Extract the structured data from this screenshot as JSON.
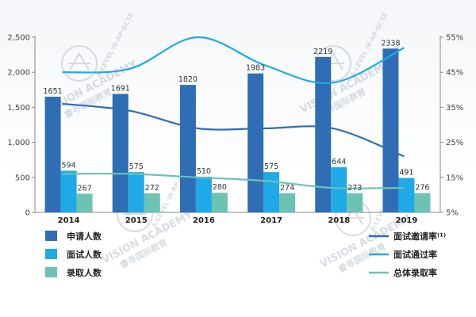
{
  "chart_data": {
    "type": "bar",
    "categories": [
      "2014",
      "2015",
      "2016",
      "2017",
      "2018",
      "2019"
    ],
    "ylim": [
      0,
      2500
    ],
    "yticks": [
      "0",
      "500",
      "1,000",
      "1,500",
      "2,000",
      "2,500"
    ],
    "y2lim": [
      5,
      55
    ],
    "y2ticks": [
      "5%",
      "15%",
      "25%",
      "35%",
      "45%",
      "55%"
    ],
    "grid": false,
    "series": [
      {
        "name": "申请人数",
        "kind": "bar",
        "color": "#2f6db5",
        "values": [
          1651,
          1691,
          1820,
          1983,
          2219,
          2338
        ],
        "labels": [
          "1651",
          "1691",
          "1820",
          "1983",
          "2219",
          "2338"
        ]
      },
      {
        "name": "面试人数",
        "kind": "bar",
        "color": "#1fa9e6",
        "values": [
          594,
          575,
          510,
          575,
          644,
          491
        ],
        "labels": [
          "594",
          "575",
          "510",
          "575",
          "644",
          "491"
        ]
      },
      {
        "name": "录取人数",
        "kind": "bar",
        "color": "#6cc3b4",
        "values": [
          267,
          272,
          280,
          274,
          273,
          276
        ],
        "labels": [
          "267",
          "272",
          "280",
          "274",
          "273",
          "276"
        ]
      },
      {
        "name": "面试邀请率⁽¹⁾",
        "kind": "line",
        "axis": "right",
        "color": "#2f6db5",
        "values": [
          36,
          34,
          29,
          29,
          29,
          21
        ]
      },
      {
        "name": "面试通过率",
        "kind": "line",
        "axis": "right",
        "color": "#1fa9e6",
        "values": [
          45,
          46,
          55,
          47,
          42,
          52
        ]
      },
      {
        "name": "总体录取率",
        "kind": "line",
        "axis": "right",
        "color": "#6cc3b4",
        "values": [
          16,
          16,
          15,
          14,
          12,
          12
        ]
      }
    ],
    "legend": "bottom"
  },
  "watermark": {
    "name": "VISION ACADEMY",
    "cn": "睿寻国际教育",
    "sub": "A-LEVEL·IB·AP·GCSE"
  }
}
